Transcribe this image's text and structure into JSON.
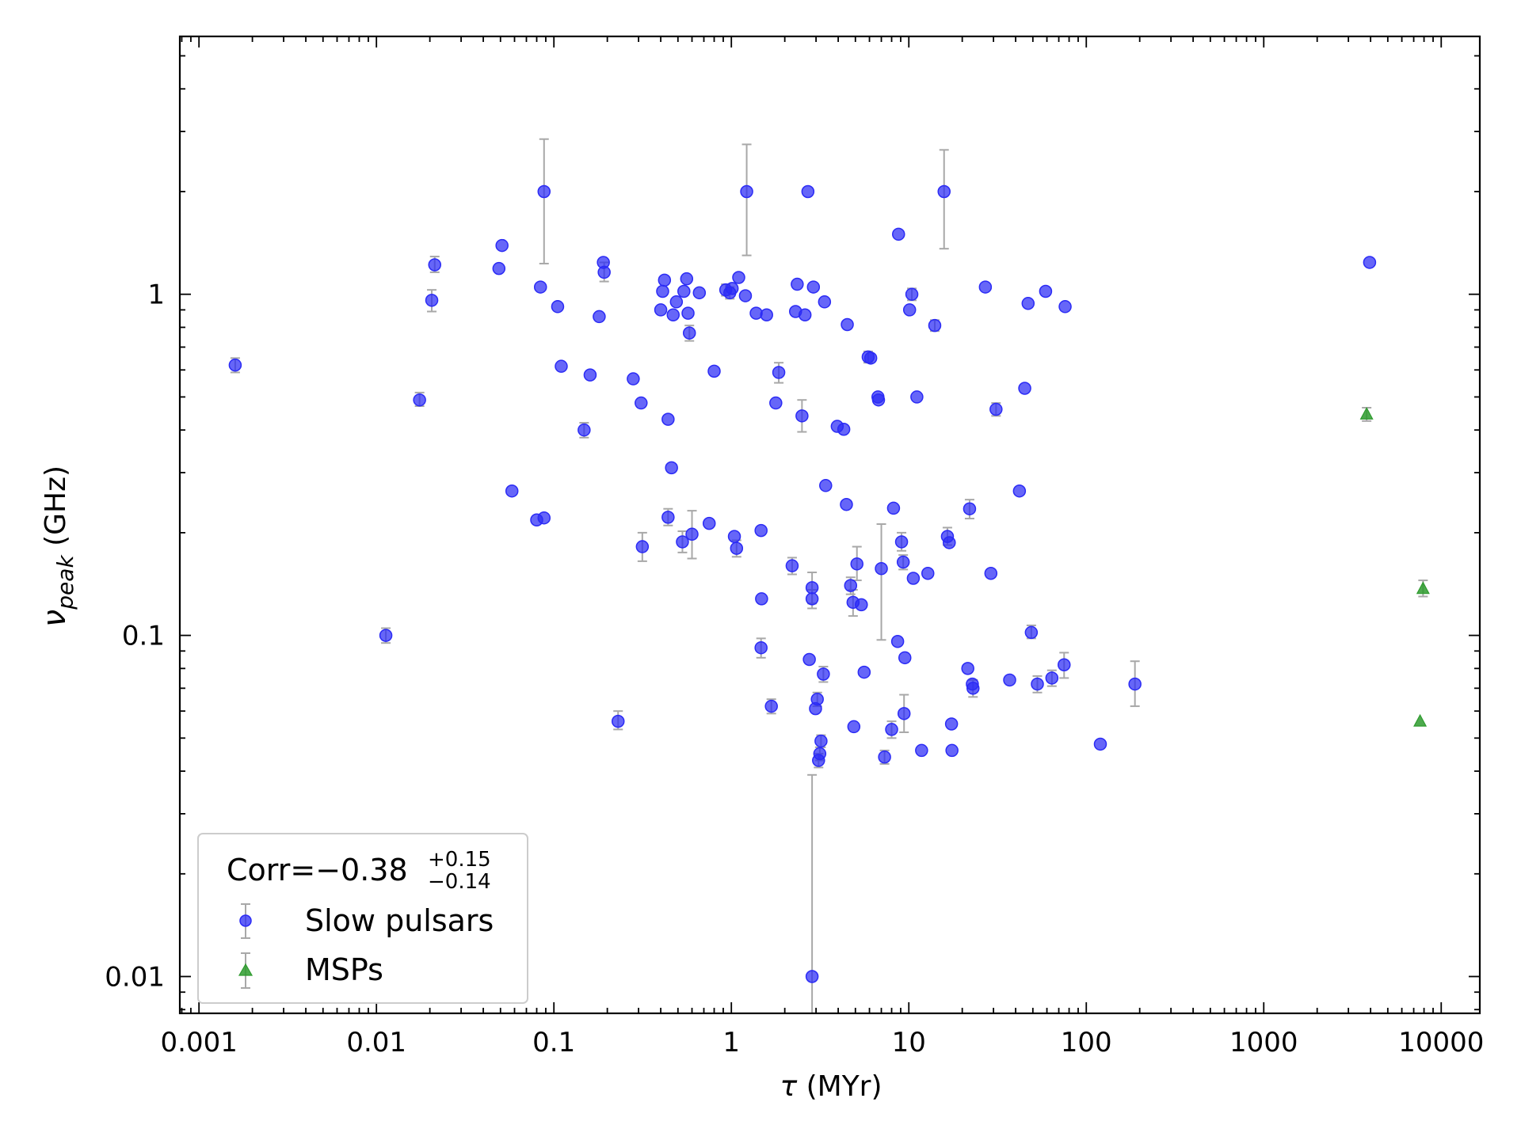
{
  "chart_data": {
    "type": "scatter",
    "x_scale": "log",
    "y_scale": "log",
    "xlabel": "τ (MYr)",
    "ylabel": "ν_peak (GHz)",
    "xlim": [
      0.00078,
      16500
    ],
    "ylim": [
      0.0078,
      5.7
    ],
    "x_ticks": [
      {
        "value": 0.001,
        "label": "0.001"
      },
      {
        "value": 0.01,
        "label": "0.01"
      },
      {
        "value": 0.1,
        "label": "0.1"
      },
      {
        "value": 1,
        "label": "1"
      },
      {
        "value": 10,
        "label": "10"
      },
      {
        "value": 100,
        "label": "100"
      },
      {
        "value": 1000,
        "label": "1000"
      },
      {
        "value": 10000,
        "label": "10000"
      }
    ],
    "y_ticks": [
      {
        "value": 0.01,
        "label": "0.01"
      },
      {
        "value": 0.1,
        "label": "0.1"
      },
      {
        "value": 1,
        "label": "1"
      }
    ],
    "legend": {
      "position": "lower-left",
      "title_main": "Corr=−0.38",
      "title_sup": "+0.15",
      "title_sub": "−0.14"
    },
    "series": [
      {
        "name": "Slow pulsars",
        "color": "#2b2bf5",
        "marker": "circle",
        "points": [
          {
            "x": 0.0016,
            "y": 0.62,
            "lo": 0.59,
            "hi": 0.65
          },
          {
            "x": 0.0113,
            "y": 0.1,
            "lo": 0.095,
            "hi": 0.105
          },
          {
            "x": 0.0175,
            "y": 0.49,
            "lo": 0.47,
            "hi": 0.515
          },
          {
            "x": 0.0205,
            "y": 0.96,
            "lo": 0.89,
            "hi": 1.03
          },
          {
            "x": 0.0213,
            "y": 1.22,
            "lo": 1.16,
            "hi": 1.29
          },
          {
            "x": 0.049,
            "y": 1.19
          },
          {
            "x": 0.051,
            "y": 1.39
          },
          {
            "x": 0.058,
            "y": 0.265
          },
          {
            "x": 0.08,
            "y": 0.218
          },
          {
            "x": 0.084,
            "y": 1.05
          },
          {
            "x": 0.088,
            "y": 0.221
          },
          {
            "x": 0.088,
            "y": 2.0,
            "lo": 1.23,
            "hi": 2.85
          },
          {
            "x": 0.105,
            "y": 0.92
          },
          {
            "x": 0.11,
            "y": 0.615
          },
          {
            "x": 0.16,
            "y": 0.58
          },
          {
            "x": 0.148,
            "y": 0.4,
            "lo": 0.38,
            "hi": 0.42
          },
          {
            "x": 0.18,
            "y": 0.86
          },
          {
            "x": 0.19,
            "y": 1.24
          },
          {
            "x": 0.192,
            "y": 1.16,
            "lo": 1.09,
            "hi": 1.24
          },
          {
            "x": 0.23,
            "y": 0.056,
            "lo": 0.053,
            "hi": 0.06
          },
          {
            "x": 0.28,
            "y": 0.565
          },
          {
            "x": 0.31,
            "y": 0.48
          },
          {
            "x": 0.315,
            "y": 0.182,
            "lo": 0.165,
            "hi": 0.2
          },
          {
            "x": 0.4,
            "y": 0.9
          },
          {
            "x": 0.41,
            "y": 1.02
          },
          {
            "x": 0.42,
            "y": 1.1
          },
          {
            "x": 0.44,
            "y": 0.43
          },
          {
            "x": 0.44,
            "y": 0.222,
            "lo": 0.21,
            "hi": 0.235
          },
          {
            "x": 0.46,
            "y": 0.31
          },
          {
            "x": 0.47,
            "y": 0.87
          },
          {
            "x": 0.49,
            "y": 0.95
          },
          {
            "x": 0.53,
            "y": 0.188,
            "lo": 0.175,
            "hi": 0.202
          },
          {
            "x": 0.54,
            "y": 1.02
          },
          {
            "x": 0.56,
            "y": 1.11
          },
          {
            "x": 0.57,
            "y": 0.88
          },
          {
            "x": 0.58,
            "y": 0.77,
            "lo": 0.73,
            "hi": 0.81
          },
          {
            "x": 0.6,
            "y": 0.198,
            "lo": 0.168,
            "hi": 0.232
          },
          {
            "x": 0.66,
            "y": 1.01
          },
          {
            "x": 0.75,
            "y": 0.213
          },
          {
            "x": 0.8,
            "y": 0.595
          },
          {
            "x": 0.93,
            "y": 1.03,
            "lo": 0.99,
            "hi": 1.07
          },
          {
            "x": 0.98,
            "y": 1.01,
            "lo": 0.97,
            "hi": 1.05
          },
          {
            "x": 1.01,
            "y": 1.04
          },
          {
            "x": 1.04,
            "y": 0.195
          },
          {
            "x": 1.07,
            "y": 0.18,
            "lo": 0.17,
            "hi": 0.19
          },
          {
            "x": 1.1,
            "y": 1.12
          },
          {
            "x": 1.2,
            "y": 0.99
          },
          {
            "x": 1.22,
            "y": 2.0,
            "lo": 1.3,
            "hi": 2.75
          },
          {
            "x": 1.38,
            "y": 0.88
          },
          {
            "x": 1.47,
            "y": 0.203
          },
          {
            "x": 1.48,
            "y": 0.128
          },
          {
            "x": 1.47,
            "y": 0.092,
            "lo": 0.086,
            "hi": 0.098
          },
          {
            "x": 1.58,
            "y": 0.87
          },
          {
            "x": 1.68,
            "y": 0.062,
            "lo": 0.059,
            "hi": 0.065
          },
          {
            "x": 1.78,
            "y": 0.48
          },
          {
            "x": 1.85,
            "y": 0.59,
            "lo": 0.55,
            "hi": 0.63
          },
          {
            "x": 2.2,
            "y": 0.16,
            "lo": 0.151,
            "hi": 0.169
          },
          {
            "x": 2.3,
            "y": 0.89
          },
          {
            "x": 2.35,
            "y": 1.07
          },
          {
            "x": 2.5,
            "y": 0.44,
            "lo": 0.395,
            "hi": 0.49
          },
          {
            "x": 2.6,
            "y": 0.87
          },
          {
            "x": 2.7,
            "y": 2.0
          },
          {
            "x": 2.75,
            "y": 0.085
          },
          {
            "x": 2.85,
            "y": 0.138,
            "lo": 0.124,
            "hi": 0.153
          },
          {
            "x": 2.85,
            "y": 0.128,
            "lo": 0.12,
            "hi": 0.136
          },
          {
            "x": 2.85,
            "y": 0.01,
            "lo": 0.0075,
            "hi": 0.039
          },
          {
            "x": 2.9,
            "y": 1.05
          },
          {
            "x": 2.98,
            "y": 0.061
          },
          {
            "x": 3.05,
            "y": 0.065,
            "lo": 0.062,
            "hi": 0.068
          },
          {
            "x": 3.1,
            "y": 0.043,
            "lo": 0.041,
            "hi": 0.045
          },
          {
            "x": 3.15,
            "y": 0.045,
            "lo": 0.043,
            "hi": 0.047
          },
          {
            "x": 3.2,
            "y": 0.049,
            "lo": 0.047,
            "hi": 0.051
          },
          {
            "x": 3.3,
            "y": 0.077,
            "lo": 0.073,
            "hi": 0.081
          },
          {
            "x": 3.35,
            "y": 0.95
          },
          {
            "x": 3.4,
            "y": 0.275
          },
          {
            "x": 3.95,
            "y": 0.41
          },
          {
            "x": 4.3,
            "y": 0.402
          },
          {
            "x": 4.45,
            "y": 0.242
          },
          {
            "x": 4.5,
            "y": 0.815
          },
          {
            "x": 4.7,
            "y": 0.14,
            "lo": 0.132,
            "hi": 0.148
          },
          {
            "x": 4.85,
            "y": 0.125,
            "lo": 0.114,
            "hi": 0.136
          },
          {
            "x": 4.9,
            "y": 0.054
          },
          {
            "x": 5.1,
            "y": 0.162,
            "lo": 0.145,
            "hi": 0.182
          },
          {
            "x": 5.4,
            "y": 0.123
          },
          {
            "x": 5.6,
            "y": 0.078
          },
          {
            "x": 5.9,
            "y": 0.655,
            "lo": 0.63,
            "hi": 0.68
          },
          {
            "x": 6.1,
            "y": 0.65
          },
          {
            "x": 6.7,
            "y": 0.5
          },
          {
            "x": 6.75,
            "y": 0.49
          },
          {
            "x": 7.0,
            "y": 0.157,
            "lo": 0.097,
            "hi": 0.212
          },
          {
            "x": 7.3,
            "y": 0.044,
            "lo": 0.042,
            "hi": 0.046
          },
          {
            "x": 8.0,
            "y": 0.053,
            "lo": 0.05,
            "hi": 0.056
          },
          {
            "x": 8.2,
            "y": 0.236
          },
          {
            "x": 8.65,
            "y": 0.096
          },
          {
            "x": 8.75,
            "y": 1.5
          },
          {
            "x": 9.1,
            "y": 0.188,
            "lo": 0.177,
            "hi": 0.2
          },
          {
            "x": 9.3,
            "y": 0.164,
            "lo": 0.156,
            "hi": 0.172
          },
          {
            "x": 9.4,
            "y": 0.059,
            "lo": 0.052,
            "hi": 0.067
          },
          {
            "x": 9.5,
            "y": 0.086
          },
          {
            "x": 10.1,
            "y": 0.9
          },
          {
            "x": 10.4,
            "y": 1.0,
            "lo": 0.96,
            "hi": 1.04
          },
          {
            "x": 10.6,
            "y": 0.147
          },
          {
            "x": 11.1,
            "y": 0.5
          },
          {
            "x": 11.8,
            "y": 0.046
          },
          {
            "x": 12.8,
            "y": 0.152
          },
          {
            "x": 14.0,
            "y": 0.81,
            "lo": 0.78,
            "hi": 0.84
          },
          {
            "x": 15.8,
            "y": 2.0,
            "lo": 1.36,
            "hi": 2.65
          },
          {
            "x": 16.5,
            "y": 0.195,
            "lo": 0.184,
            "hi": 0.207
          },
          {
            "x": 16.9,
            "y": 0.187
          },
          {
            "x": 17.4,
            "y": 0.055
          },
          {
            "x": 17.5,
            "y": 0.046
          },
          {
            "x": 21.5,
            "y": 0.08
          },
          {
            "x": 22.0,
            "y": 0.235,
            "lo": 0.22,
            "hi": 0.25
          },
          {
            "x": 22.8,
            "y": 0.072
          },
          {
            "x": 23.0,
            "y": 0.07,
            "lo": 0.066,
            "hi": 0.074
          },
          {
            "x": 27.0,
            "y": 1.05
          },
          {
            "x": 29.0,
            "y": 0.152
          },
          {
            "x": 31.0,
            "y": 0.46,
            "lo": 0.44,
            "hi": 0.48
          },
          {
            "x": 37.0,
            "y": 0.074
          },
          {
            "x": 42.0,
            "y": 0.265
          },
          {
            "x": 45.0,
            "y": 0.53
          },
          {
            "x": 47.0,
            "y": 0.94
          },
          {
            "x": 49.0,
            "y": 0.102,
            "lo": 0.098,
            "hi": 0.107
          },
          {
            "x": 53.0,
            "y": 0.072,
            "lo": 0.068,
            "hi": 0.076
          },
          {
            "x": 59.0,
            "y": 1.02
          },
          {
            "x": 64.0,
            "y": 0.075,
            "lo": 0.071,
            "hi": 0.079
          },
          {
            "x": 75.0,
            "y": 0.082,
            "lo": 0.075,
            "hi": 0.089
          },
          {
            "x": 76.0,
            "y": 0.92
          },
          {
            "x": 120.0,
            "y": 0.048
          },
          {
            "x": 188.0,
            "y": 0.072,
            "lo": 0.062,
            "hi": 0.084
          },
          {
            "x": 3950.0,
            "y": 1.24
          }
        ]
      },
      {
        "name": "MSPs",
        "color": "#2e9b2e",
        "marker": "triangle",
        "points": [
          {
            "x": 3800.0,
            "y": 0.445,
            "lo": 0.425,
            "hi": 0.465
          },
          {
            "x": 7900.0,
            "y": 0.137,
            "lo": 0.13,
            "hi": 0.145
          },
          {
            "x": 7600.0,
            "y": 0.056
          }
        ]
      }
    ]
  }
}
